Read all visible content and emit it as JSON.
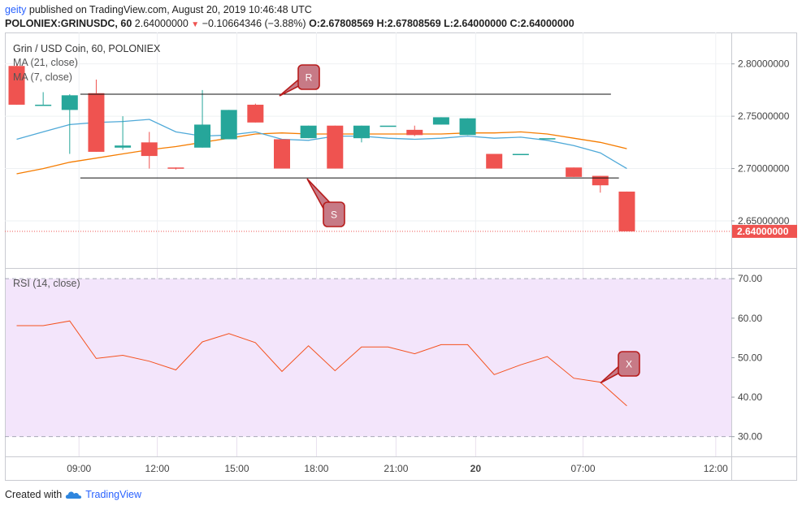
{
  "header": {
    "user": "geity",
    "published_text": " published on TradingView.com, August 20, 2019 10:46:48 UTC",
    "symbol": "POLONIEX:GRINUSDC, 60",
    "price": "2.64000000",
    "change": "−0.10664346 (−3.88%)",
    "ohlc": "O:2.67808569 H:2.67808569 L:2.64000000 C:2.64000000"
  },
  "legend": {
    "title": "Grin / USD Coin, 60, POLONIEX",
    "ma21": "MA (21, close)",
    "ma7": "MA (7, close)",
    "rsi": "RSI (14, close)"
  },
  "footer": {
    "created_with": "Created with",
    "brand": "TradingView"
  },
  "colors": {
    "up": "#26a69a",
    "down": "#ef5350",
    "ma21": "#f57c00",
    "ma7": "#4fa9d8",
    "rsi": "#f4511e",
    "rsi_band": "#f3e5fb",
    "callout": "#b71c1c"
  },
  "chart_data": [
    {
      "type": "candlestick",
      "title": "Grin / USD Coin, 60, POLONIEX",
      "xlabels": [
        "09:00",
        "12:00",
        "15:00",
        "18:00",
        "21:00",
        "20",
        "07:00",
        "12:00"
      ],
      "ylim": [
        2.605,
        2.83
      ],
      "yticks": [
        "2.80000000",
        "2.75000000",
        "2.70000000",
        "2.65000000"
      ],
      "last_price": "2.64000000",
      "candles": [
        {
          "o": 2.798,
          "h": 2.8,
          "l": 2.761,
          "c": 2.761
        },
        {
          "o": 2.761,
          "h": 2.773,
          "l": 2.761,
          "c": 2.761
        },
        {
          "o": 2.756,
          "h": 2.771,
          "l": 2.714,
          "c": 2.77
        },
        {
          "o": 2.772,
          "h": 2.785,
          "l": 2.716,
          "c": 2.716
        },
        {
          "o": 2.72,
          "h": 2.75,
          "l": 2.718,
          "c": 2.722
        },
        {
          "o": 2.725,
          "h": 2.735,
          "l": 2.7,
          "c": 2.712
        },
        {
          "o": 2.701,
          "h": 2.701,
          "l": 2.699,
          "c": 2.7
        },
        {
          "o": 2.72,
          "h": 2.775,
          "l": 2.72,
          "c": 2.742
        },
        {
          "o": 2.728,
          "h": 2.756,
          "l": 2.728,
          "c": 2.756
        },
        {
          "o": 2.761,
          "h": 2.762,
          "l": 2.744,
          "c": 2.744
        },
        {
          "o": 2.728,
          "h": 2.728,
          "l": 2.7,
          "c": 2.7
        },
        {
          "o": 2.729,
          "h": 2.741,
          "l": 2.729,
          "c": 2.741
        },
        {
          "o": 2.741,
          "h": 2.741,
          "l": 2.7,
          "c": 2.7
        },
        {
          "o": 2.729,
          "h": 2.741,
          "l": 2.725,
          "c": 2.741
        },
        {
          "o": 2.741,
          "h": 2.741,
          "l": 2.741,
          "c": 2.741
        },
        {
          "o": 2.737,
          "h": 2.741,
          "l": 2.731,
          "c": 2.732
        },
        {
          "o": 2.742,
          "h": 2.749,
          "l": 2.742,
          "c": 2.749
        },
        {
          "o": 2.732,
          "h": 2.748,
          "l": 2.732,
          "c": 2.748
        },
        {
          "o": 2.714,
          "h": 2.714,
          "l": 2.7,
          "c": 2.7
        },
        {
          "o": 2.714,
          "h": 2.714,
          "l": 2.714,
          "c": 2.714
        },
        {
          "o": 2.729,
          "h": 2.729,
          "l": 2.729,
          "c": 2.729
        },
        {
          "o": 2.701,
          "h": 2.701,
          "l": 2.692,
          "c": 2.692
        },
        {
          "o": 2.693,
          "h": 2.693,
          "l": 2.677,
          "c": 2.684
        },
        {
          "o": 2.678,
          "h": 2.678,
          "l": 2.64,
          "c": 2.64
        }
      ],
      "ma21": [
        2.695,
        2.7,
        2.706,
        2.71,
        2.714,
        2.718,
        2.721,
        2.725,
        2.729,
        2.733,
        2.734,
        2.733,
        2.733,
        2.733,
        2.733,
        2.733,
        2.733,
        2.734,
        2.734,
        2.735,
        2.733,
        2.729,
        2.725,
        2.719
      ],
      "ma7": [
        2.728,
        2.735,
        2.742,
        2.744,
        2.745,
        2.747,
        2.735,
        2.731,
        2.732,
        2.735,
        2.728,
        2.727,
        2.731,
        2.731,
        2.729,
        2.728,
        2.729,
        2.731,
        2.729,
        2.73,
        2.727,
        2.722,
        2.715,
        2.7
      ],
      "resistance": 2.771,
      "support": 2.691,
      "annotations": [
        "R",
        "S"
      ]
    },
    {
      "type": "line",
      "title": "RSI (14, close)",
      "ylim": [
        25,
        72.5
      ],
      "yticks": [
        "70.00",
        "60.00",
        "50.00",
        "40.00",
        "30.00"
      ],
      "band": [
        30,
        70
      ],
      "values": [
        58.1,
        58.1,
        59.3,
        49.8,
        50.6,
        49.1,
        46.9,
        54.0,
        56.1,
        53.8,
        46.5,
        53.0,
        46.7,
        52.7,
        52.7,
        51.0,
        53.3,
        53.3,
        45.7,
        48.2,
        50.3,
        44.8,
        43.8,
        37.8
      ],
      "annotations": [
        "X"
      ]
    }
  ]
}
